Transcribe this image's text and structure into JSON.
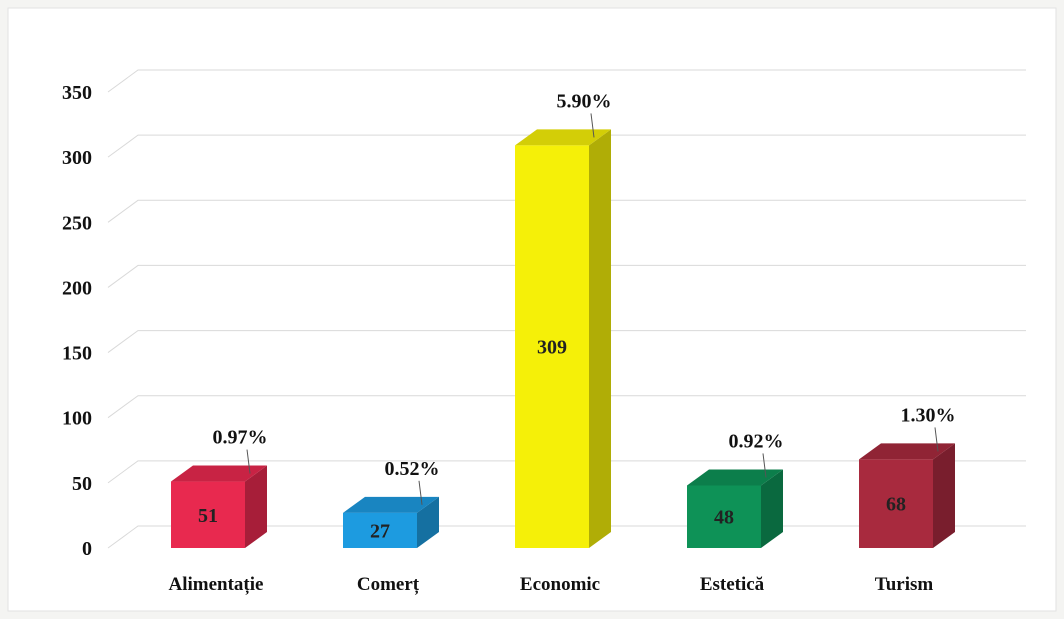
{
  "chart_data": {
    "type": "bar",
    "categories": [
      "Alimentație",
      "Comerț",
      "Economic",
      "Estetică",
      "Turism"
    ],
    "values": [
      51,
      27,
      309,
      48,
      68
    ],
    "percent_labels": [
      "0.97%",
      "0.52%",
      "5.90%",
      "0.92%",
      "1.30%"
    ],
    "colors": [
      "#e8294f",
      "#1d9be0",
      "#f5f008",
      "#0e9257",
      "#a82a3e"
    ],
    "yticks": [
      "0",
      "50",
      "100",
      "150",
      "200",
      "250",
      "300",
      "350"
    ],
    "ylim": [
      0,
      350
    ],
    "grid": true,
    "style": "3d-column"
  }
}
